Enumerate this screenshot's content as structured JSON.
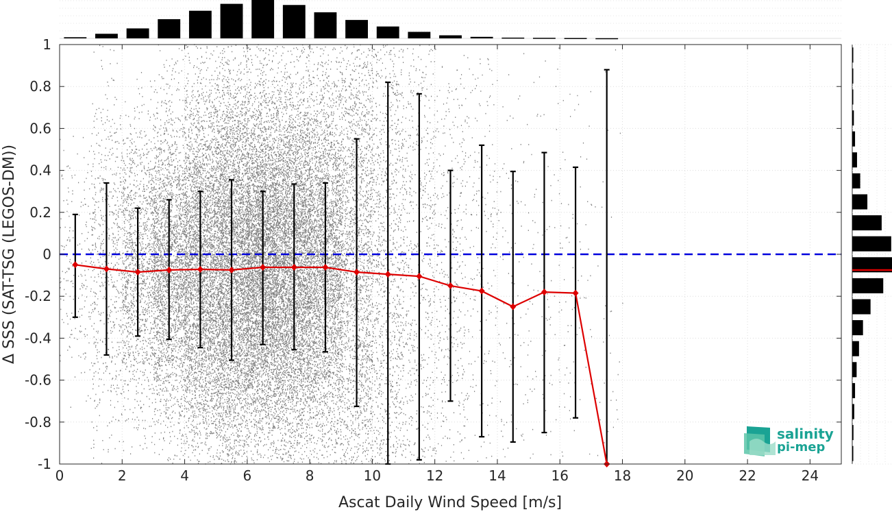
{
  "chart_data": {
    "type": "scatter",
    "xlabel": "Ascat Daily Wind Speed [m/s]",
    "ylabel": "Δ SSS (SAT-TSG (LEGOS-DM))",
    "xlim": [
      0,
      25
    ],
    "ylim": [
      -1,
      1
    ],
    "xticks": [
      0,
      2,
      4,
      6,
      8,
      10,
      12,
      14,
      16,
      18,
      20,
      22,
      24
    ],
    "yticks": [
      -1,
      -0.8,
      -0.6,
      -0.4,
      -0.2,
      0,
      0.2,
      0.4,
      0.6,
      0.8,
      1
    ],
    "grid": true,
    "reference_line": {
      "y": 0,
      "color": "#0000dd",
      "style": "dashed"
    },
    "scatter_color": "#808080",
    "mean_color": "#dd0000",
    "errorbar_color": "#000000",
    "binned_stats": {
      "x": [
        0.5,
        1.5,
        2.5,
        3.5,
        4.5,
        5.5,
        6.5,
        7.5,
        8.5,
        9.5,
        10.5,
        11.5,
        12.5,
        13.5,
        14.5,
        15.5,
        16.5,
        17.5
      ],
      "mean": [
        -0.05,
        -0.07,
        -0.085,
        -0.075,
        -0.072,
        -0.075,
        -0.062,
        -0.062,
        -0.062,
        -0.085,
        -0.095,
        -0.105,
        -0.15,
        -0.175,
        -0.25,
        -0.18,
        -0.185,
        -1.0
      ],
      "upper": [
        0.19,
        0.34,
        0.22,
        0.26,
        0.3,
        0.355,
        0.3,
        0.335,
        0.34,
        0.55,
        0.82,
        0.765,
        0.4,
        0.52,
        0.395,
        0.485,
        0.415,
        0.88
      ],
      "lower": [
        -0.3,
        -0.48,
        -0.39,
        -0.405,
        -0.445,
        -0.505,
        -0.43,
        -0.455,
        -0.465,
        -0.725,
        -1.0,
        -0.98,
        -0.7,
        -0.87,
        -0.895,
        -0.85,
        -0.78,
        -1.0
      ]
    },
    "top_histogram": {
      "x": [
        0.5,
        1.5,
        2.5,
        3.5,
        4.5,
        5.5,
        6.5,
        7.5,
        8.5,
        9.5,
        10.5,
        11.5,
        12.5,
        13.5,
        14.5,
        15.5,
        16.5,
        17.5
      ],
      "counts": [
        0.03,
        0.12,
        0.26,
        0.5,
        0.72,
        0.9,
        1.0,
        0.87,
        0.68,
        0.48,
        0.31,
        0.17,
        0.08,
        0.04,
        0.02,
        0.015,
        0.01,
        0.005
      ]
    },
    "right_histogram": {
      "y": [
        -0.95,
        -0.85,
        -0.75,
        -0.65,
        -0.55,
        -0.45,
        -0.35,
        -0.25,
        -0.15,
        -0.05,
        0.05,
        0.15,
        0.25,
        0.35,
        0.45,
        0.55,
        0.65,
        0.75,
        0.85,
        0.95
      ],
      "counts": [
        0.02,
        0.03,
        0.05,
        0.07,
        0.11,
        0.17,
        0.27,
        0.46,
        0.78,
        1.0,
        0.98,
        0.74,
        0.38,
        0.2,
        0.12,
        0.07,
        0.04,
        0.02,
        0.015,
        0.01
      ],
      "mean_line": -0.075
    }
  },
  "logo": {
    "line1": "salinity",
    "line2": "pi-mep",
    "color": "#1aa394"
  }
}
